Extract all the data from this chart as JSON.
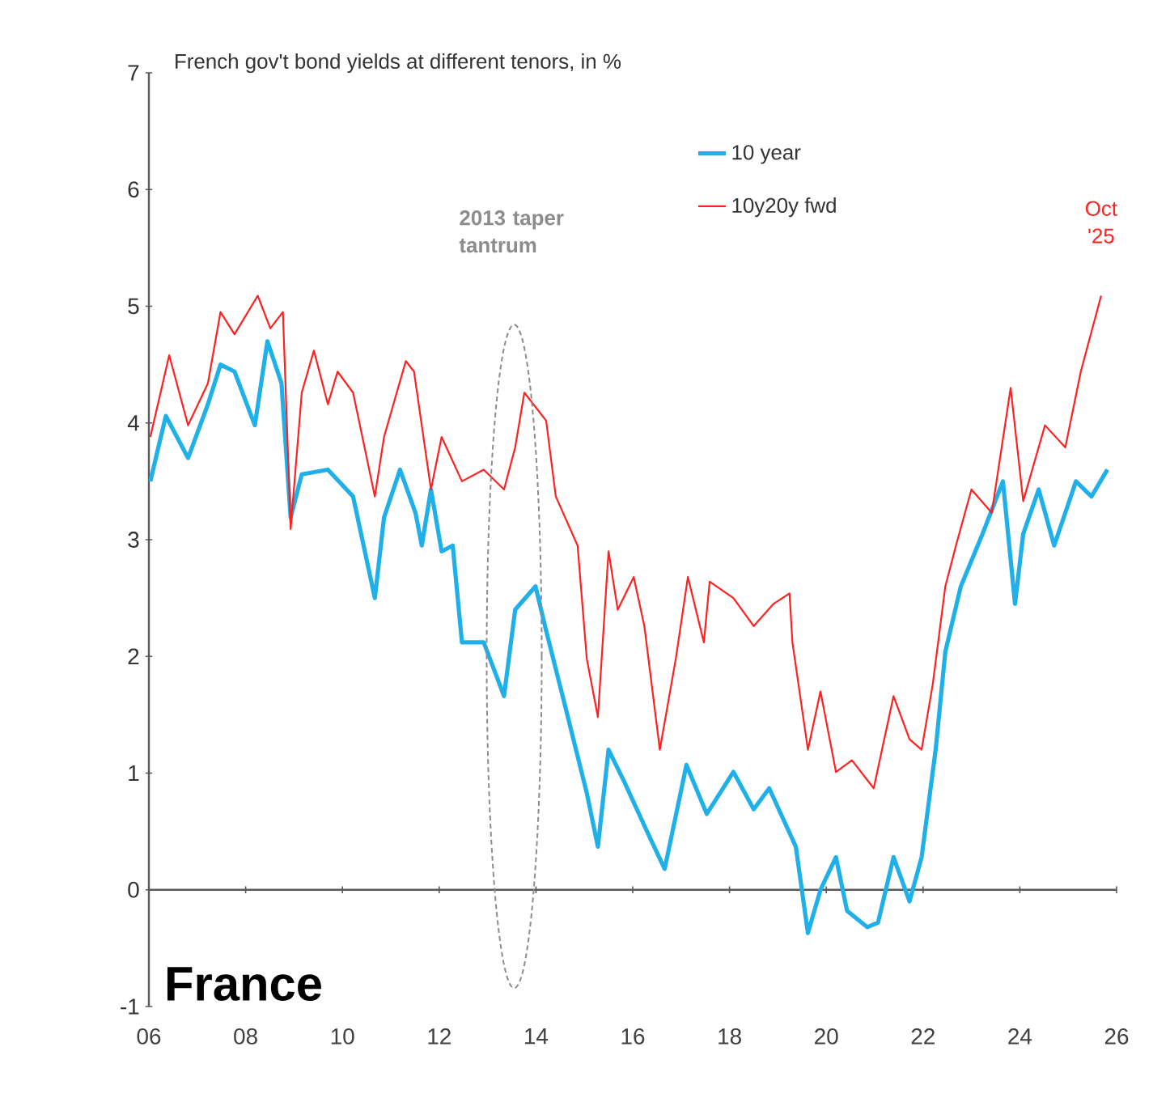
{
  "chart_data": {
    "type": "line",
    "title": "French gov't bond yields at different tenors, in %",
    "xlim": [
      2006,
      2026
    ],
    "ylim": [
      -1,
      7
    ],
    "xticks": [
      {
        "value": 2006,
        "label": "06"
      },
      {
        "value": 2008,
        "label": "08"
      },
      {
        "value": 2010,
        "label": "10"
      },
      {
        "value": 2012,
        "label": "12"
      },
      {
        "value": 2014,
        "label": "14"
      },
      {
        "value": 2016,
        "label": "16"
      },
      {
        "value": 2018,
        "label": "18"
      },
      {
        "value": 2020,
        "label": "20"
      },
      {
        "value": 2022,
        "label": "22"
      },
      {
        "value": 2024,
        "label": "24"
      },
      {
        "value": 2026,
        "label": "26"
      }
    ],
    "yticks": [
      -1,
      0,
      1,
      2,
      3,
      4,
      5,
      6,
      7
    ],
    "legend": "top",
    "series": [
      {
        "name": "10 year",
        "color": "#1fb0ea",
        "x": [
          2006.03,
          2006.35,
          2006.81,
          2007.22,
          2007.48,
          2007.77,
          2008.19,
          2008.45,
          2008.74,
          2008.93,
          2009.16,
          2009.7,
          2010.22,
          2010.67,
          2010.86,
          2011.19,
          2011.51,
          2011.64,
          2011.83,
          2012.05,
          2012.28,
          2012.47,
          2012.92,
          2013.34,
          2013.57,
          2013.99,
          2014.21,
          2014.63,
          2015.05,
          2015.28,
          2015.5,
          2015.82,
          2016.34,
          2016.66,
          2017.11,
          2017.53,
          2018.08,
          2018.5,
          2018.82,
          2019.37,
          2019.62,
          2019.88,
          2020.2,
          2020.43,
          2020.85,
          2021.07,
          2021.39,
          2021.72,
          2021.97,
          2022.26,
          2022.46,
          2022.78,
          2023.23,
          2023.65,
          2023.9,
          2024.07,
          2024.39,
          2024.71,
          2025.16,
          2025.48,
          2025.81
        ],
        "values": [
          3.5,
          4.06,
          3.7,
          4.16,
          4.5,
          4.44,
          3.98,
          4.7,
          4.34,
          3.19,
          3.56,
          3.6,
          3.37,
          2.5,
          3.19,
          3.6,
          3.23,
          2.95,
          3.43,
          2.9,
          2.95,
          2.12,
          2.12,
          1.66,
          2.4,
          2.6,
          2.22,
          1.53,
          0.83,
          0.37,
          1.2,
          0.93,
          0.46,
          0.18,
          1.07,
          0.65,
          1.01,
          0.69,
          0.87,
          0.37,
          -0.37,
          0,
          0.28,
          -0.18,
          -0.32,
          -0.28,
          0.28,
          -0.1,
          0.28,
          1.2,
          2.04,
          2.6,
          3.05,
          3.5,
          2.45,
          3.05,
          3.43,
          2.95,
          3.5,
          3.37,
          3.6
        ]
      },
      {
        "name": "10y20y fwd",
        "color": "#ff2020",
        "x": [
          2006.03,
          2006.42,
          2006.81,
          2007.22,
          2007.48,
          2007.77,
          2008.25,
          2008.51,
          2008.77,
          2008.93,
          2009.16,
          2009.41,
          2009.7,
          2009.9,
          2010.22,
          2010.67,
          2010.86,
          2011.31,
          2011.48,
          2011.83,
          2012.05,
          2012.47,
          2012.92,
          2013.34,
          2013.57,
          2013.76,
          2014.21,
          2014.41,
          2014.86,
          2015.05,
          2015.28,
          2015.5,
          2015.69,
          2016.02,
          2016.24,
          2016.56,
          2016.89,
          2017.14,
          2017.47,
          2017.59,
          2018.08,
          2018.5,
          2018.91,
          2019.24,
          2019.3,
          2019.62,
          2019.88,
          2020.2,
          2020.53,
          2020.98,
          2021.39,
          2021.72,
          2021.97,
          2022.2,
          2022.46,
          2022.68,
          2023.0,
          2023.42,
          2023.81,
          2024.07,
          2024.52,
          2024.94,
          2025.26,
          2025.68
        ],
        "values": [
          3.88,
          4.58,
          3.98,
          4.34,
          4.95,
          4.76,
          5.09,
          4.81,
          4.95,
          3.09,
          4.26,
          4.62,
          4.16,
          4.44,
          4.26,
          3.37,
          3.88,
          4.53,
          4.44,
          3.43,
          3.88,
          3.5,
          3.6,
          3.43,
          3.79,
          4.26,
          4.02,
          3.37,
          2.95,
          1.98,
          1.48,
          2.9,
          2.4,
          2.68,
          2.26,
          1.2,
          1.98,
          2.68,
          2.12,
          2.64,
          2.5,
          2.26,
          2.45,
          2.54,
          2.12,
          1.2,
          1.7,
          1.01,
          1.11,
          0.87,
          1.66,
          1.29,
          1.2,
          1.76,
          2.6,
          2.95,
          3.43,
          3.23,
          4.3,
          3.33,
          3.98,
          3.79,
          4.44,
          5.09
        ]
      }
    ],
    "annotations": [
      "2013 taper tantrum",
      {
        "text": "Oct '25",
        "x": 2025.68,
        "y": 5.09
      },
      "France"
    ]
  }
}
